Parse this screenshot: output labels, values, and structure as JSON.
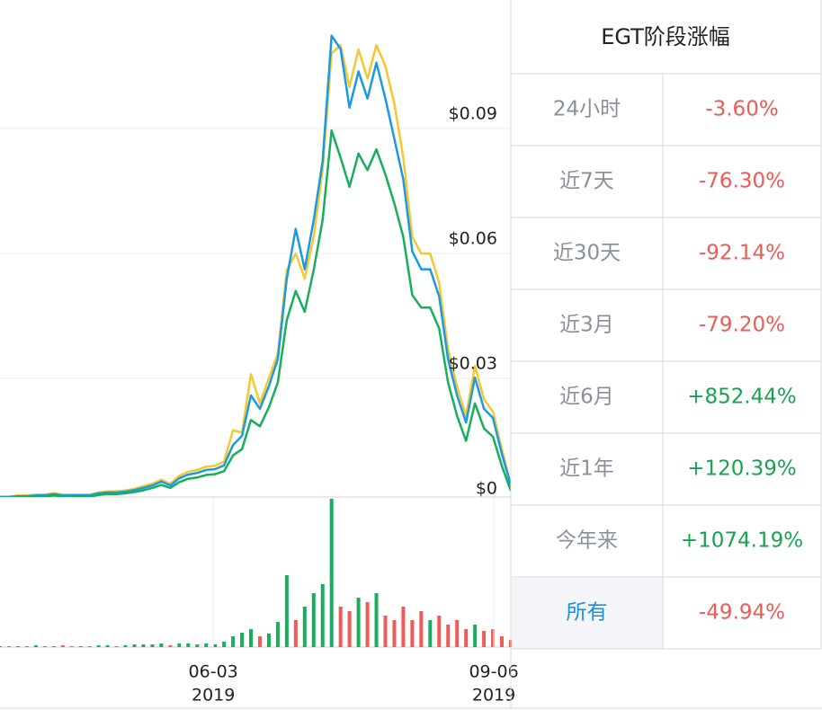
{
  "chart_data": {
    "type": "line",
    "ylim": [
      0,
      0.12
    ],
    "yticks": [
      {
        "value": 0,
        "label": "$0"
      },
      {
        "value": 0.03,
        "label": "$0.03"
      },
      {
        "value": 0.06,
        "label": "$0.06"
      },
      {
        "value": 0.09,
        "label": "$0.09"
      }
    ],
    "grid": true,
    "xlim": [
      0,
      57
    ],
    "xticks": [
      {
        "value": 23.8,
        "label": "06-03",
        "year": "2019"
      },
      {
        "value": 55.1,
        "label": "09-06",
        "year": "2019"
      }
    ],
    "series": [
      {
        "color": "#f7c631",
        "values": [
          0.0016,
          0.0016,
          0.0019,
          0.0019,
          0.0021,
          0.0021,
          0.0024,
          0.0021,
          0.0021,
          0.0021,
          0.0021,
          0.0026,
          0.0029,
          0.0029,
          0.0031,
          0.0035,
          0.0041,
          0.0047,
          0.0057,
          0.0047,
          0.0066,
          0.0076,
          0.008,
          0.0088,
          0.009,
          0.01,
          0.0175,
          0.017,
          0.031,
          0.024,
          0.03,
          0.036,
          0.056,
          0.06,
          0.054,
          0.064,
          0.08,
          0.108,
          0.11,
          0.1,
          0.109,
          0.102,
          0.11,
          0.105,
          0.096,
          0.083,
          0.064,
          0.06,
          0.06,
          0.053,
          0.037,
          0.028,
          0.021,
          0.033,
          0.025,
          0.022,
          0.013,
          0.0045
        ]
      },
      {
        "color": "#1a9be0",
        "values": [
          0.0015,
          0.0015,
          0.0017,
          0.0017,
          0.0019,
          0.0019,
          0.0022,
          0.0019,
          0.0019,
          0.0019,
          0.0019,
          0.0024,
          0.0026,
          0.0026,
          0.0028,
          0.0032,
          0.0037,
          0.0043,
          0.0052,
          0.0043,
          0.006,
          0.0069,
          0.0073,
          0.008,
          0.0082,
          0.0091,
          0.014,
          0.0162,
          0.0259,
          0.0227,
          0.0281,
          0.0346,
          0.054,
          0.0659,
          0.0562,
          0.068,
          0.0821,
          0.1123,
          0.1091,
          0.095,
          0.1037,
          0.0972,
          0.1058,
          0.0972,
          0.0875,
          0.0778,
          0.0605,
          0.0562,
          0.0562,
          0.0497,
          0.0346,
          0.0259,
          0.0194,
          0.0302,
          0.0227,
          0.0205,
          0.0119,
          0.0043
        ]
      },
      {
        "color": "#17ae5c",
        "values": [
          0.0013,
          0.0013,
          0.0014,
          0.0014,
          0.0016,
          0.0016,
          0.0019,
          0.0016,
          0.0016,
          0.0016,
          0.0016,
          0.002,
          0.0022,
          0.0022,
          0.0024,
          0.0027,
          0.0031,
          0.0037,
          0.0044,
          0.0037,
          0.0051,
          0.0059,
          0.0062,
          0.0068,
          0.007,
          0.0077,
          0.0115,
          0.013,
          0.02,
          0.0185,
          0.023,
          0.029,
          0.044,
          0.051,
          0.046,
          0.056,
          0.068,
          0.0895,
          0.083,
          0.076,
          0.084,
          0.08,
          0.085,
          0.079,
          0.072,
          0.064,
          0.05,
          0.047,
          0.047,
          0.042,
          0.029,
          0.021,
          0.015,
          0.024,
          0.018,
          0.016,
          0.009,
          0.003
        ]
      }
    ],
    "volume": {
      "ylim": [
        0,
        165
      ],
      "values": [
        1,
        1,
        1,
        1,
        2,
        1,
        1,
        2,
        1,
        1,
        1,
        2,
        2,
        1,
        2,
        3,
        3,
        3,
        4,
        2,
        4,
        4,
        3,
        4,
        3,
        6,
        12,
        16,
        20,
        12,
        15,
        28,
        80,
        30,
        45,
        60,
        70,
        165,
        45,
        40,
        55,
        50,
        60,
        35,
        30,
        45,
        30,
        40,
        30,
        35,
        25,
        30,
        20,
        25,
        18,
        20,
        12,
        8
      ],
      "colors": [
        "#17ae5c",
        "#f05a57",
        "#17ae5c",
        "#f05a57",
        "#17ae5c",
        "#f05a57",
        "#17ae5c",
        "#f05a57",
        "#f05a57",
        "#17ae5c",
        "#f05a57",
        "#17ae5c",
        "#17ae5c",
        "#f05a57",
        "#17ae5c",
        "#17ae5c",
        "#17ae5c",
        "#17ae5c",
        "#17ae5c",
        "#f05a57",
        "#17ae5c",
        "#17ae5c",
        "#17ae5c",
        "#17ae5c",
        "#17ae5c",
        "#17ae5c",
        "#17ae5c",
        "#17ae5c",
        "#17ae5c",
        "#f05a57",
        "#17ae5c",
        "#17ae5c",
        "#17ae5c",
        "#f05a57",
        "#17ae5c",
        "#17ae5c",
        "#17ae5c",
        "#17ae5c",
        "#f05a57",
        "#f05a57",
        "#17ae5c",
        "#f05a57",
        "#17ae5c",
        "#f05a57",
        "#f05a57",
        "#f05a57",
        "#f05a57",
        "#f05a57",
        "#17ae5c",
        "#f05a57",
        "#f05a57",
        "#f05a57",
        "#f05a57",
        "#17ae5c",
        "#f05a57",
        "#f05a57",
        "#f05a57",
        "#f05a57"
      ]
    }
  },
  "table": {
    "title": "EGT阶段涨幅",
    "rows": [
      {
        "label": "24小时",
        "value": "-3.60%",
        "color": "#ec5b56"
      },
      {
        "label": "近7天",
        "value": "-76.30%",
        "color": "#ec5b56"
      },
      {
        "label": "近30天",
        "value": "-92.14%",
        "color": "#ec5b56"
      },
      {
        "label": "近3月",
        "value": "-79.20%",
        "color": "#ec5b56"
      },
      {
        "label": "近6月",
        "value": "+852.44%",
        "color": "#17a352"
      },
      {
        "label": "近1年",
        "value": "+120.39%",
        "color": "#17a352"
      },
      {
        "label": "今年来",
        "value": "+1074.19%",
        "color": "#17a352"
      },
      {
        "label": "所有",
        "value": "-49.94%",
        "color": "#ec5b56",
        "active": true
      }
    ]
  }
}
